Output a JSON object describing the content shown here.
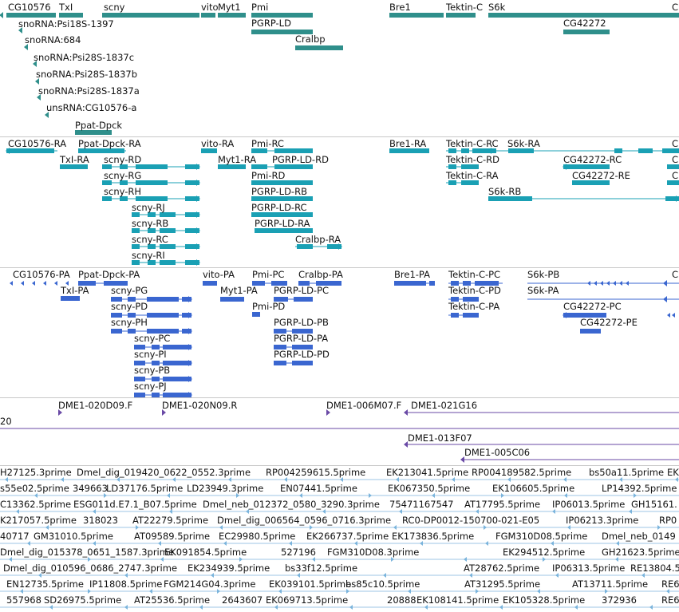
{
  "colors": {
    "genes": "#2f8f8b",
    "rna": "#1aa0b4",
    "protein": "#3a66d0",
    "clone": "#6a4aa6",
    "est": "#7ab4dc",
    "separator": "#c8c8c8"
  },
  "tracks": {
    "genes": {
      "labels": [
        "CG10576",
        "TxI",
        "scny",
        "vito",
        "Myt1",
        "Pmi",
        "PGRP-LD",
        "Cralbp",
        "Bre1",
        "Tektin-C",
        "S6k",
        "CG42272",
        "C"
      ],
      "ncrna": [
        "snoRNA:Psi18S-1397",
        "snoRNA:684",
        "snoRNA:Psi28S-1837c",
        "snoRNA:Psi28S-1837b",
        "snoRNA:Psi28S-1837a",
        "unsRNA:CG10576-a",
        "Ppat-Dpck"
      ]
    },
    "transcripts": {
      "labels": [
        "CG10576-RA",
        "Ppat-Dpck-RA",
        "vito-RA",
        "Pmi-RC",
        "Bre1-RA",
        "Tektin-C-RC",
        "S6k-RA",
        "C",
        "TxI-RA",
        "scny-RD",
        "Myt1-RA",
        "PGRP-LD-RD",
        "Tektin-C-RD",
        "CG42272-RC",
        "C",
        "scny-RG",
        "Pmi-RD",
        "Tektin-C-RA",
        "CG42272-RE",
        "C",
        "scny-RH",
        "PGRP-LD-RB",
        "S6k-RB",
        "scny-RJ",
        "PGRP-LD-RC",
        "scny-RB",
        "PGRP-LD-RA",
        "scny-RC",
        "Cralbp-RA",
        "scny-RI"
      ]
    },
    "proteins": {
      "labels": [
        "CG10576-PA",
        "Ppat-Dpck-PA",
        "vito-PA",
        "Pmi-PC",
        "Cralbp-PA",
        "Bre1-PA",
        "Tektin-C-PC",
        "S6k-PB",
        "C",
        "TxI-PA",
        "scny-PG",
        "Myt1-PA",
        "PGRP-LD-PC",
        "Tektin-C-PD",
        "S6k-PA",
        "scny-PD",
        "Pmi-PD",
        "Tektin-C-PA",
        "CG42272-PC",
        "scny-PH",
        "PGRP-LD-PB",
        "CG42272-PE",
        "scny-PC",
        "PGRP-LD-PA",
        "scny-PI",
        "PGRP-LD-PD",
        "scny-PB",
        "scny-PJ"
      ]
    },
    "clones": {
      "labels": [
        "DME1-020D09.F",
        "DME1-020N09.R",
        "DME1-006M07.F",
        "DME1-021G16",
        "20",
        "DME1-013F07",
        "DME1-005C06"
      ]
    },
    "ests": {
      "labels": [
        "H27125.3prime",
        "Dmel_dig_019420_0622_0552.3prime",
        "RP004259615.5prime",
        "EK213041.5prime",
        "RP004189582.5prime",
        "bs50a11.5prime",
        "EK",
        "s55e02.5prime",
        "349663",
        "LD37176.5prime",
        "LD23949.3prime",
        "EN07441.5prime",
        "EK067350.5prime",
        "EK106605.5prime",
        "LP14392.5prime",
        "C13362.5prime",
        "ESG011d.E7.1_B07.5prime",
        "Dmel_neb_012372_0580_3290.3prime",
        "75471167547",
        "AT17795.5prime",
        "IP06013.5prime",
        "GH15161.",
        "K217057.5prime",
        "318023",
        "AT22279.5prime",
        "Dmel_dig_006564_0596_0716.3prime",
        "RC0-DP0012-150700-021-E05",
        "IP06213.3prime",
        "RP0",
        "40717",
        "GM31010.5prime",
        "AT09589.5prime",
        "EC29980.5prime",
        "EK266737.5prime",
        "EK173836.5prime",
        "FGM310D08.5prime",
        "Dmel_neb_0149",
        "Dmel_dig_015378_0651_1587.3prime",
        "EK091854.5prime",
        "527196",
        "FGM310D08.3prime",
        "EK294512.5prime",
        "GH21623.5prime",
        "Dmel_dig_010596_0686_2747.3prime",
        "EK234939.5prime",
        "bs33f12.5prime",
        "AT28762.5prime",
        "IP06313.5prime",
        "RE13804.5",
        "EN12735.5prime",
        "IP11808.5prime",
        "FGM214G04.3prime",
        "EK039101.5prime",
        "bs85c10.5prime",
        "AT31295.5prime",
        "AT13711.5prime",
        "RE6",
        "557968",
        "SD26975.5prime",
        "AT25536.5prime",
        "2643607",
        "EK069713.5prime",
        "20888",
        "EK108141.5prime",
        "EK105328.5prime",
        "372936",
        "RE6"
      ]
    }
  }
}
